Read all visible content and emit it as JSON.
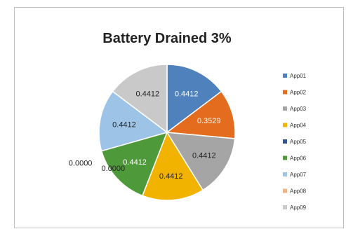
{
  "chart_data": {
    "type": "pie",
    "title": "Battery Drained 3%",
    "categories": [
      "App01",
      "App02",
      "App03",
      "App04",
      "App05",
      "App06",
      "App07",
      "App08",
      "App09"
    ],
    "values": [
      0.4412,
      0.3529,
      0.4412,
      0.4412,
      0.0,
      0.4412,
      0.4412,
      0.0,
      0.4412
    ],
    "data_labels": [
      "0.4412",
      "0.3529",
      "0.4412",
      "0.4412",
      "0.0000",
      "0.4412",
      "0.4412",
      "0.0000",
      "0.4412"
    ],
    "colors": [
      "#4f81bd",
      "#e36c1f",
      "#a5a5a5",
      "#f2b200",
      "#2f5597",
      "#4e9a3a",
      "#9dc3e6",
      "#f4b183",
      "#c9c9c9"
    ],
    "legend_position": "right",
    "start_angle_deg": 0,
    "direction": "clockwise"
  }
}
